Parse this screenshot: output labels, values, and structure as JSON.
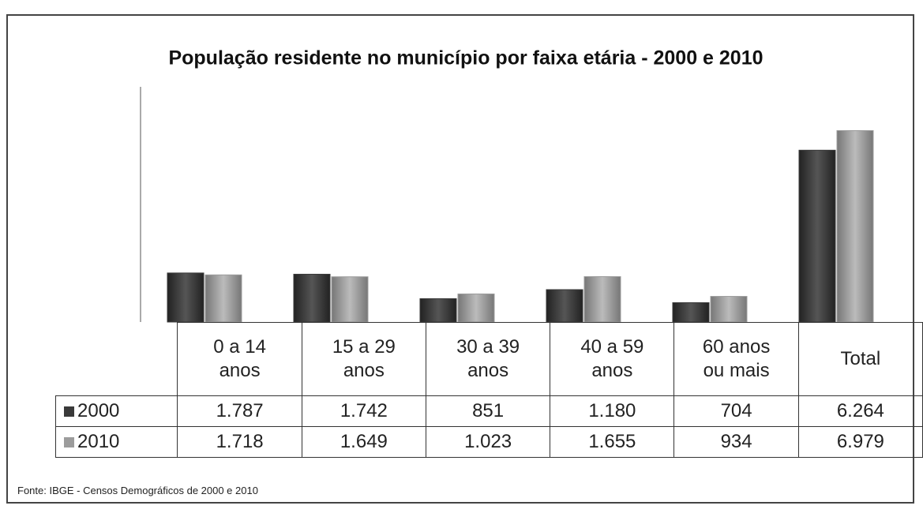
{
  "chart_data": {
    "type": "bar",
    "title": "População residente no município por faixa etária - 2000 e 2010",
    "categories": [
      "0 a 14 anos",
      "15 a 29 anos",
      "30 a 39 anos",
      "40 a 59 anos",
      "60 anos ou mais",
      "Total"
    ],
    "series": [
      {
        "name": "2000",
        "color": "#3a3a3a",
        "values": [
          1787,
          1742,
          851,
          1180,
          704,
          6264
        ],
        "value_labels": [
          "1.787",
          "1.742",
          "851",
          "1.180",
          "704",
          "6.264"
        ]
      },
      {
        "name": "2010",
        "color": "#9c9c9c",
        "values": [
          1718,
          1649,
          1023,
          1655,
          934,
          6979
        ],
        "value_labels": [
          "1.718",
          "1.649",
          "1.023",
          "1.655",
          "934",
          "6.979"
        ]
      }
    ],
    "ylim": [
      0,
      8000
    ],
    "source": "Fonte: IBGE - Censos Demográficos de 2000 e 2010"
  }
}
